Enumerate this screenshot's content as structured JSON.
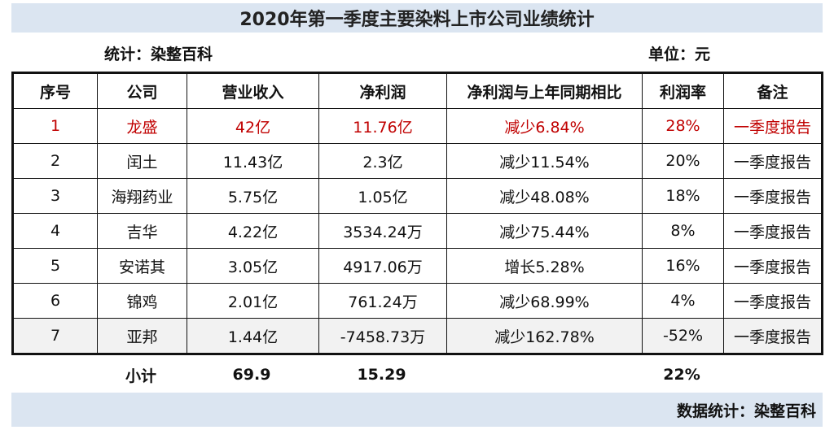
{
  "title": "2020年第一季度主要染料上市公司业绩统计",
  "stats_source": "统计：染整百科",
  "unit": "单位：元",
  "headers": [
    "序号",
    "公司",
    "营业收入",
    "净利润",
    "净利润与上年同期相比",
    "利润率",
    "备注"
  ],
  "rows": [
    [
      "1",
      "龙盛",
      "42亿",
      "11.76亿",
      "减少6.84%",
      "28%",
      "一季度报告"
    ],
    [
      "2",
      "闰土",
      "11.43亿",
      "2.3亿",
      "减少11.54%",
      "20%",
      "一季度报告"
    ],
    [
      "3",
      "海翔药业",
      "5.75亿",
      "1.05亿",
      "减少48.08%",
      "18%",
      "一季度报告"
    ],
    [
      "4",
      "吉华",
      "4.22亿",
      "3534.24万",
      "减少75.44%",
      "8%",
      "一季度报告"
    ],
    [
      "5",
      "安诺其",
      "3.05亿",
      "4917.06万",
      "增长5.28%",
      "16%",
      "一季度报告"
    ],
    [
      "6",
      "锦鸡",
      "2.01亿",
      "761.24万",
      "减少68.99%",
      "4%",
      "一季度报告"
    ],
    [
      "7",
      "亚邦",
      "1.44亿",
      "-7458.73万",
      "减少162.78%",
      "-52%",
      "一季度报告"
    ]
  ],
  "summary": {
    "label": "小计",
    "revenue_total": "69.9",
    "profit_total": "15.29",
    "margin": "22%"
  },
  "footer": "数据统计：染整百科",
  "colors": {
    "band": "#dbe5f1",
    "highlight_text": "#c00000",
    "shaded_row": "#f2f2f2"
  }
}
